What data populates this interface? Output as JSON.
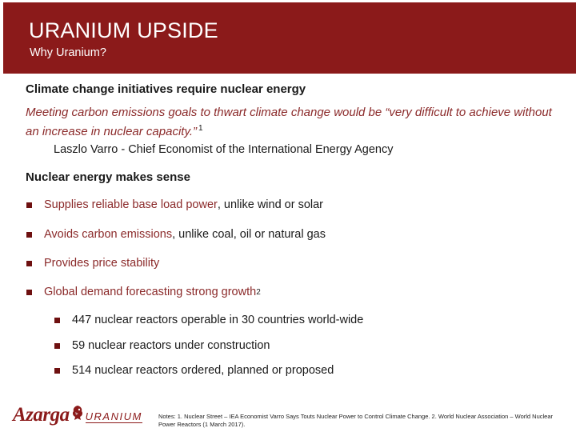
{
  "header": {
    "title": "URANIUM UPSIDE",
    "subtitle": "Why Uranium?"
  },
  "section1": {
    "heading": "Climate change initiatives require nuclear energy",
    "quote": "Meeting carbon emissions goals to thwart climate change would be “very difficult to achieve without an increase in nuclear capacity.”",
    "quote_ref": "1",
    "author": "Laszlo Varro - Chief Economist of the International Energy Agency"
  },
  "section2": {
    "heading": "Nuclear energy makes sense",
    "bullets": [
      {
        "highlight": "Supplies reliable base load power",
        "rest": ", unlike wind or solar",
        "ref": ""
      },
      {
        "highlight": "Avoids carbon emissions",
        "rest": ", unlike coal, oil or natural gas",
        "ref": ""
      },
      {
        "highlight": "Provides price stability",
        "rest": "",
        "ref": ""
      },
      {
        "highlight": "Global demand forecasting strong growth",
        "rest": "",
        "ref": "2"
      }
    ],
    "sub_bullets": [
      "447 nuclear reactors operable in 30 countries world-wide",
      "59 nuclear reactors under construction",
      "514 nuclear reactors ordered, planned or proposed"
    ]
  },
  "footer": {
    "logo_name": "Azarga",
    "logo_suffix": "URANIUM",
    "logo_icon": "dragon-icon",
    "notes": "Notes: 1. Nuclear Street – IEA Economist Varro Says Touts Nuclear Power to Control Climate Change.  2. World Nuclear Association – World Nuclear Power Reactors (1 March 2017)."
  },
  "colors": {
    "brand": "#8b1a1a",
    "accent_text": "#8b2a2a",
    "bullet": "#6e1010"
  }
}
